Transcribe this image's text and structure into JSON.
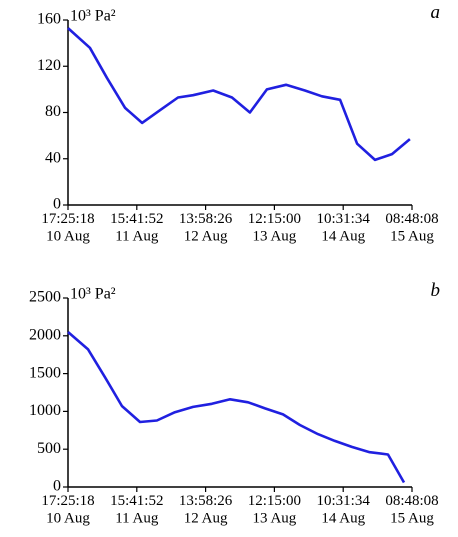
{
  "chart_data": [
    {
      "type": "line",
      "panel_label": "a",
      "ylabel": "10³ Pa²",
      "x": [
        0,
        7.1,
        12.6,
        18.5,
        24.0,
        29.8,
        35.6,
        40.5,
        47.0,
        53.1,
        58.9,
        64.4,
        70.6,
        76.7,
        82.2,
        88.1,
        93.6,
        99.4,
        104.9,
        110.7
      ],
      "values": [
        153,
        136,
        110,
        84,
        71,
        82,
        93,
        95,
        99,
        93,
        80,
        100,
        104,
        99,
        94,
        91,
        53,
        39,
        44,
        57
      ],
      "color": "#2020e0",
      "xlim": [
        0,
        111.38
      ],
      "xticks": [
        {
          "value": 0,
          "label": "17:25:18\n10 Aug"
        },
        {
          "value": 22.276,
          "label": "15:41:52\n11 Aug"
        },
        {
          "value": 44.552,
          "label": "13:58:26\n12 Aug"
        },
        {
          "value": 66.828,
          "label": "12:15:00\n13 Aug"
        },
        {
          "value": 89.104,
          "label": "10:31:34\n14 Aug"
        },
        {
          "value": 111.38,
          "label": "08:48:08\n15 Aug"
        }
      ],
      "ylim": [
        0,
        160
      ],
      "yticks": [
        0,
        40,
        80,
        120,
        160
      ]
    },
    {
      "type": "line",
      "panel_label": "b",
      "ylabel": "10³ Pa²",
      "x": [
        0,
        6.5,
        12.0,
        17.5,
        23.3,
        28.8,
        34.6,
        40.5,
        46.6,
        52.5,
        58.3,
        63.8,
        69.6,
        75.1,
        80.9,
        86.4,
        91.9,
        97.7,
        103.6,
        108.8
      ],
      "values": [
        2050,
        1820,
        1450,
        1070,
        860,
        880,
        990,
        1060,
        1100,
        1160,
        1120,
        1040,
        960,
        820,
        700,
        610,
        530,
        460,
        430,
        60
      ],
      "color": "#2020e0",
      "xlim": [
        0,
        111.38
      ],
      "xticks": [
        {
          "value": 0,
          "label": "17:25:18\n10 Aug"
        },
        {
          "value": 22.276,
          "label": "15:41:52\n11 Aug"
        },
        {
          "value": 44.552,
          "label": "13:58:26\n12 Aug"
        },
        {
          "value": 66.828,
          "label": "12:15:00\n13 Aug"
        },
        {
          "value": 89.104,
          "label": "10:31:34\n14 Aug"
        },
        {
          "value": 111.38,
          "label": "08:48:08\n15 Aug"
        }
      ],
      "ylim": [
        0,
        2500
      ],
      "yticks": [
        0,
        500,
        1000,
        1500,
        2000,
        2500
      ]
    }
  ]
}
